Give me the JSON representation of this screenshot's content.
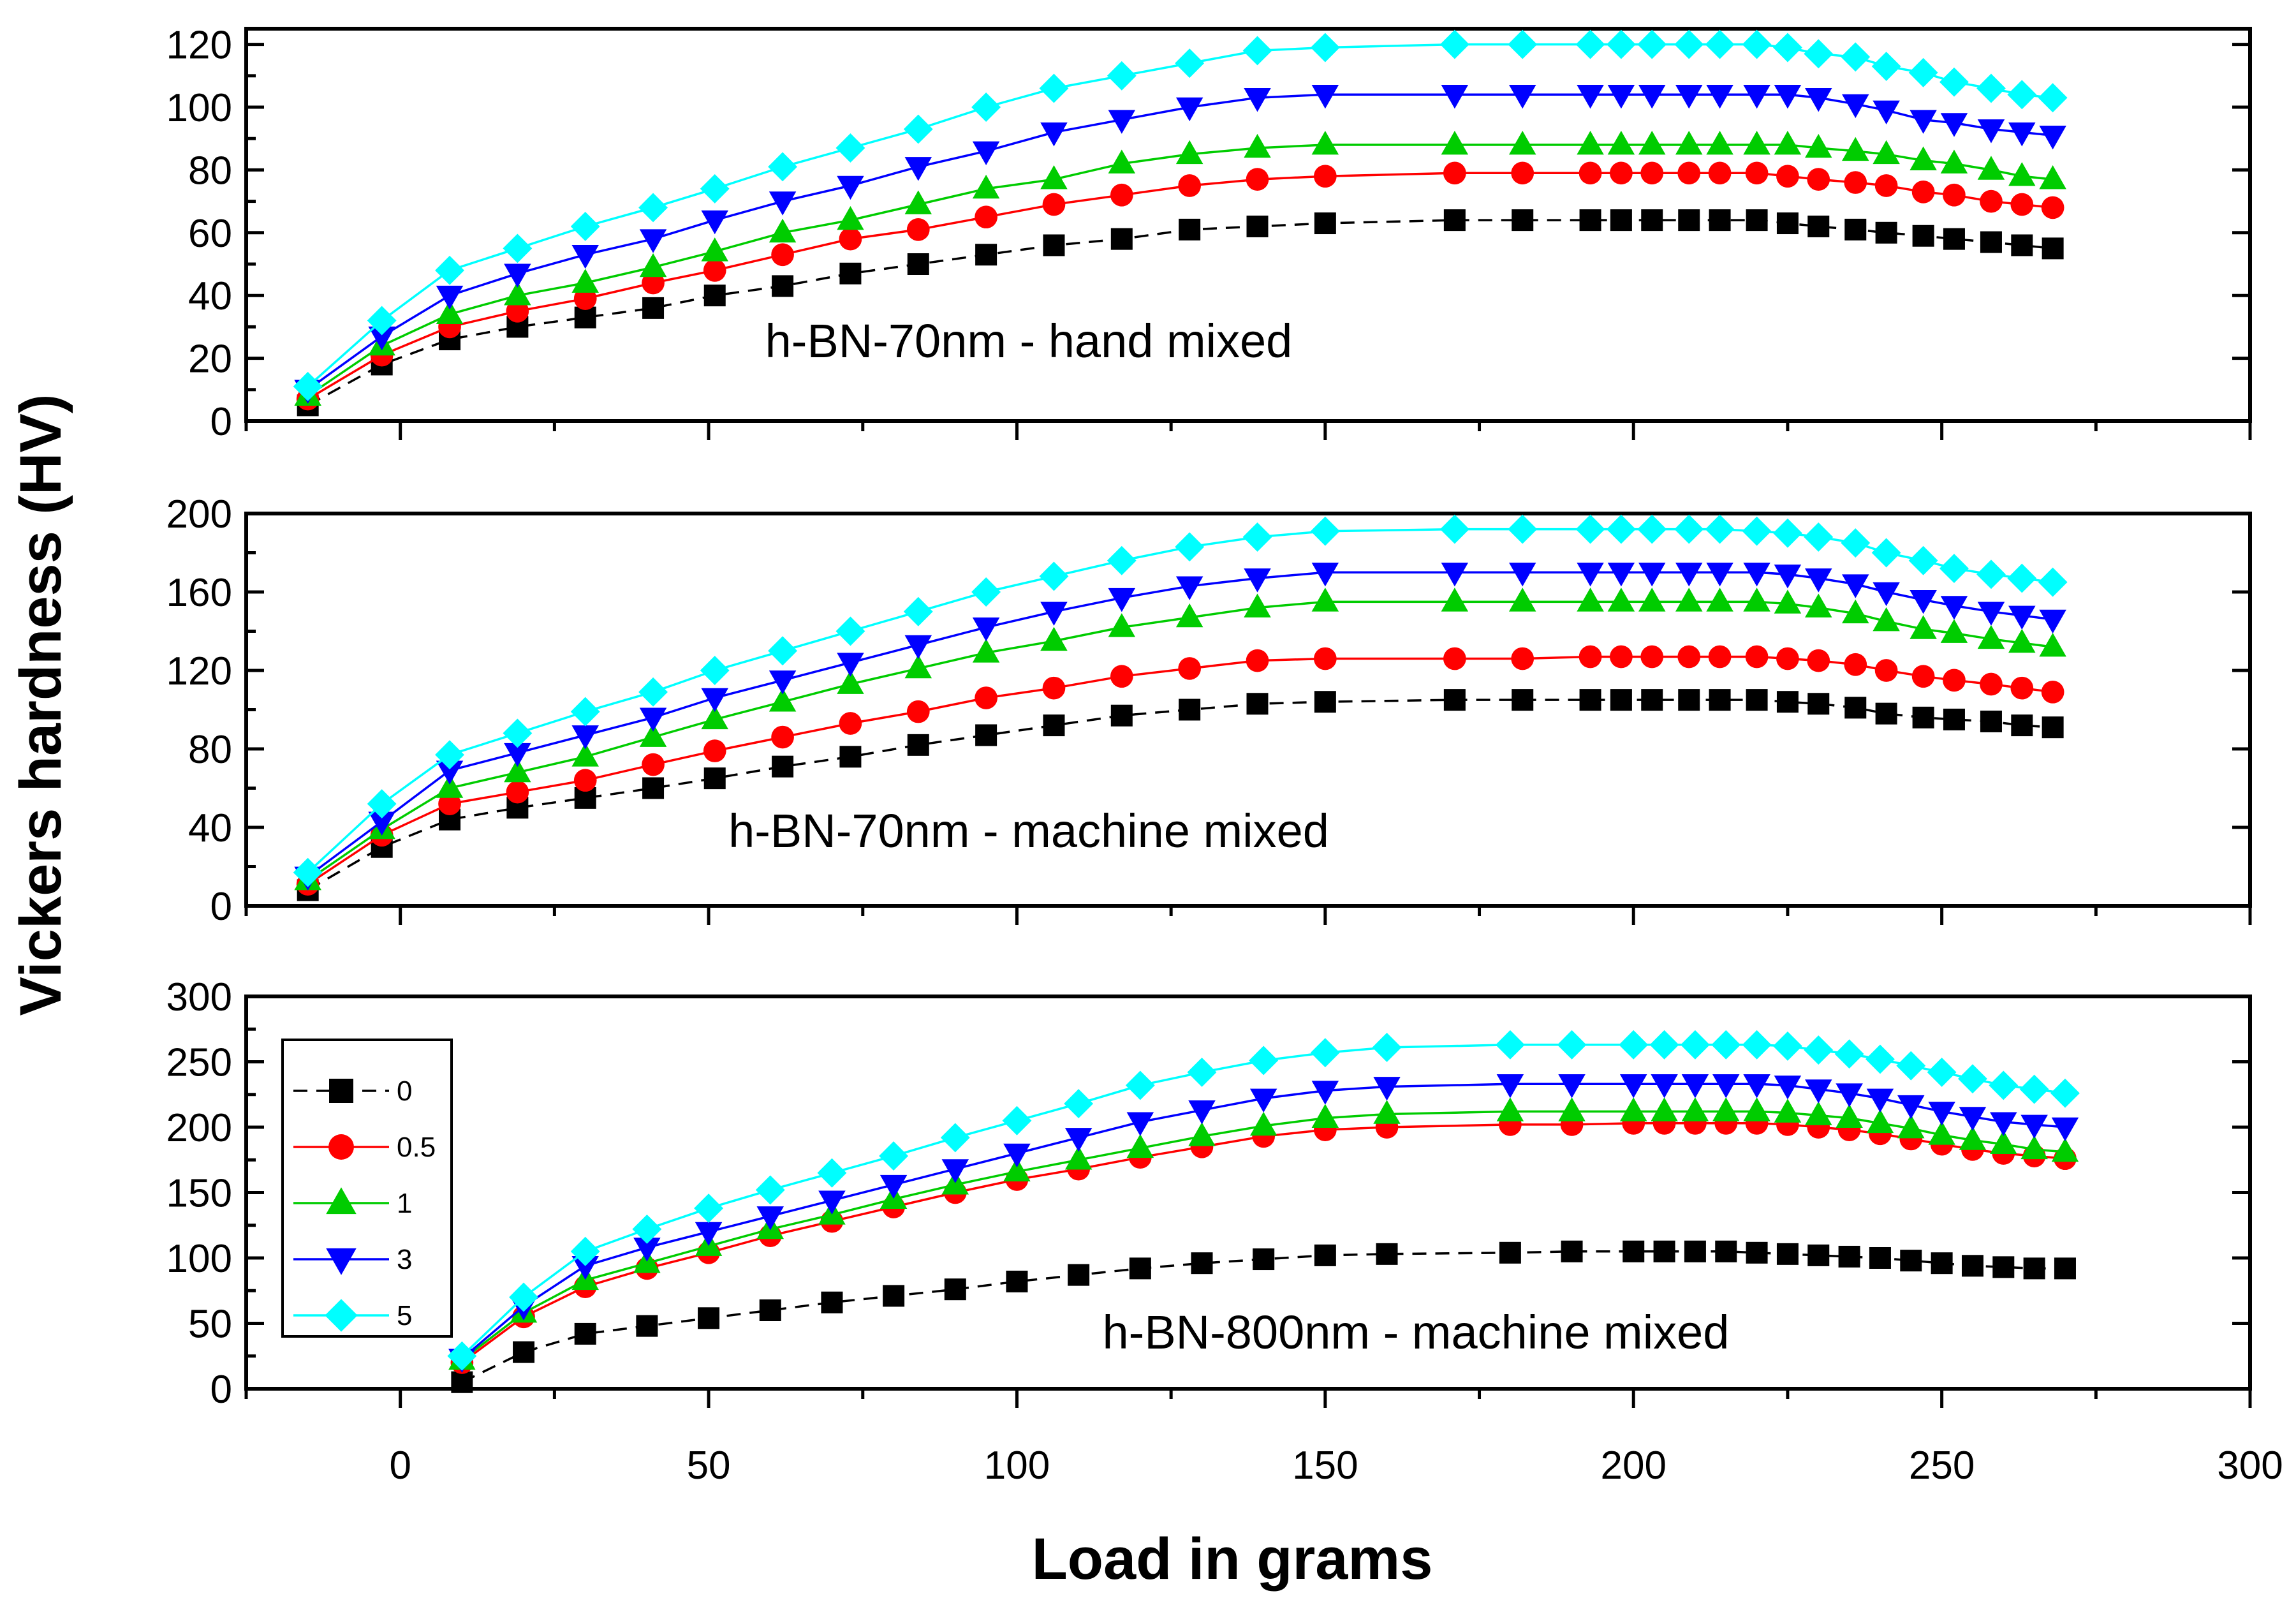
{
  "chart_data": {
    "type": "line",
    "ylabel": "Vickers hardness (HV)",
    "xlabel": "Load in grams",
    "xlim": [
      -25,
      300
    ],
    "x_ticks": [
      "0",
      "50",
      "100",
      "150",
      "200",
      "250",
      "300"
    ],
    "colors": {
      "0": "#000000",
      "0.5": "#ff0000",
      "1": "#00cc00",
      "3": "#0000ff",
      "5": "#00ffff"
    },
    "legend": {
      "position": "left",
      "entries": [
        {
          "label": "0",
          "marker": "square",
          "color": "#000000"
        },
        {
          "label": "0.5",
          "marker": "circle",
          "color": "#ff0000"
        },
        {
          "label": "1",
          "marker": "triangle-up",
          "color": "#00cc00"
        },
        {
          "label": "3",
          "marker": "triangle-down",
          "color": "#0000ff"
        },
        {
          "label": "5",
          "marker": "diamond",
          "color": "#00ffff"
        }
      ]
    },
    "panels": [
      {
        "label": "h-BN-70nm - hand mixed",
        "ylim": [
          0,
          125
        ],
        "y_ticks": [
          "0",
          "20",
          "40",
          "60",
          "80",
          "100",
          "120"
        ],
        "x": [
          -15,
          -3,
          8,
          19,
          30,
          41,
          51,
          62,
          73,
          84,
          95,
          106,
          117,
          128,
          139,
          150,
          171,
          182,
          193,
          198,
          203,
          209,
          214,
          220,
          225,
          230,
          236,
          241,
          247,
          252,
          258,
          263,
          268
        ],
        "series": [
          {
            "name": "0",
            "values": [
              5,
              18,
              26,
              30,
              33,
              36,
              40,
              43,
              47,
              50,
              53,
              56,
              58,
              61,
              62,
              63,
              64,
              64,
              64,
              64,
              64,
              64,
              64,
              64,
              63,
              62,
              61,
              60,
              59,
              58,
              57,
              56,
              55
            ]
          },
          {
            "name": "0.5",
            "values": [
              7,
              21,
              30,
              35,
              39,
              44,
              48,
              53,
              58,
              61,
              65,
              69,
              72,
              75,
              77,
              78,
              79,
              79,
              79,
              79,
              79,
              79,
              79,
              79,
              78,
              77,
              76,
              75,
              73,
              72,
              70,
              69,
              68
            ]
          },
          {
            "name": "1",
            "values": [
              8,
              24,
              34,
              40,
              44,
              49,
              54,
              60,
              64,
              69,
              74,
              77,
              82,
              85,
              87,
              88,
              88,
              88,
              88,
              88,
              88,
              88,
              88,
              88,
              88,
              87,
              86,
              85,
              83,
              82,
              80,
              78,
              77
            ]
          },
          {
            "name": "3",
            "values": [
              10,
              27,
              40,
              47,
              53,
              58,
              64,
              70,
              75,
              81,
              86,
              92,
              96,
              100,
              103,
              104,
              104,
              104,
              104,
              104,
              104,
              104,
              104,
              104,
              104,
              103,
              101,
              99,
              96,
              95,
              93,
              92,
              91
            ]
          },
          {
            "name": "5",
            "values": [
              11,
              32,
              48,
              55,
              62,
              68,
              74,
              81,
              87,
              93,
              100,
              106,
              110,
              114,
              118,
              119,
              120,
              120,
              120,
              120,
              120,
              120,
              120,
              120,
              119,
              117,
              116,
              113,
              111,
              108,
              106,
              104,
              103
            ]
          }
        ]
      },
      {
        "label": "h-BN-70nm - machine mixed",
        "ylim": [
          0,
          200
        ],
        "y_ticks": [
          "0",
          "40",
          "80",
          "120",
          "160",
          "200"
        ],
        "x": [
          -15,
          -3,
          8,
          19,
          30,
          41,
          51,
          62,
          73,
          84,
          95,
          106,
          117,
          128,
          139,
          150,
          171,
          182,
          193,
          198,
          203,
          209,
          214,
          220,
          225,
          230,
          236,
          241,
          247,
          252,
          258,
          263,
          268
        ],
        "series": [
          {
            "name": "0",
            "values": [
              8,
              30,
              44,
              50,
              55,
              60,
              65,
              71,
              76,
              82,
              87,
              92,
              97,
              100,
              103,
              104,
              105,
              105,
              105,
              105,
              105,
              105,
              105,
              105,
              104,
              103,
              101,
              98,
              96,
              95,
              94,
              92,
              91
            ]
          },
          {
            "name": "0.5",
            "values": [
              11,
              36,
              52,
              58,
              64,
              72,
              79,
              86,
              93,
              99,
              106,
              111,
              117,
              121,
              125,
              126,
              126,
              126,
              127,
              127,
              127,
              127,
              127,
              127,
              126,
              125,
              123,
              120,
              117,
              115,
              113,
              111,
              109
            ]
          },
          {
            "name": "1",
            "values": [
              13,
              39,
              60,
              68,
              76,
              86,
              95,
              104,
              113,
              121,
              129,
              135,
              142,
              147,
              152,
              155,
              155,
              155,
              155,
              155,
              155,
              155,
              155,
              155,
              154,
              152,
              149,
              145,
              141,
              139,
              136,
              134,
              132
            ]
          },
          {
            "name": "3",
            "values": [
              15,
              43,
              69,
              78,
              87,
              96,
              106,
              115,
              124,
              133,
              142,
              150,
              157,
              163,
              167,
              170,
              170,
              170,
              170,
              170,
              170,
              170,
              170,
              170,
              169,
              167,
              164,
              160,
              156,
              153,
              150,
              148,
              146
            ]
          },
          {
            "name": "5",
            "values": [
              17,
              52,
              77,
              88,
              99,
              109,
              120,
              130,
              140,
              150,
              160,
              168,
              176,
              183,
              188,
              191,
              192,
              192,
              192,
              192,
              192,
              192,
              192,
              191,
              190,
              188,
              185,
              180,
              176,
              172,
              169,
              167,
              165
            ]
          }
        ]
      },
      {
        "label": "h-BN-800nm - machine mixed",
        "ylim": [
          0,
          300
        ],
        "y_ticks": [
          "0",
          "50",
          "100",
          "150",
          "200",
          "250",
          "300"
        ],
        "x": [
          10,
          20,
          30,
          40,
          50,
          60,
          70,
          80,
          90,
          100,
          110,
          120,
          130,
          140,
          150,
          160,
          180,
          190,
          200,
          205,
          210,
          215,
          220,
          225,
          230,
          235,
          240,
          245,
          250,
          255,
          260,
          265,
          270
        ],
        "series": [
          {
            "name": "0",
            "values": [
              5,
              28,
              42,
              48,
              54,
              60,
              66,
              71,
              76,
              82,
              87,
              92,
              96,
              99,
              102,
              103,
              104,
              105,
              105,
              105,
              105,
              105,
              104,
              103,
              102,
              101,
              100,
              98,
              96,
              94,
              93,
              92,
              92
            ]
          },
          {
            "name": "0.5",
            "values": [
              20,
              55,
              78,
              92,
              104,
              117,
              128,
              139,
              150,
              160,
              168,
              177,
              185,
              193,
              198,
              200,
              202,
              202,
              203,
              203,
              203,
              203,
              203,
              202,
              200,
              198,
              195,
              191,
              187,
              183,
              180,
              178,
              176
            ]
          },
          {
            "name": "1",
            "values": [
              22,
              58,
              83,
              96,
              109,
              122,
              133,
              145,
              156,
              166,
              175,
              184,
              193,
              201,
              207,
              210,
              212,
              212,
              212,
              212,
              212,
              212,
              212,
              211,
              209,
              207,
              203,
              199,
              194,
              190,
              187,
              183,
              181
            ]
          },
          {
            "name": "3",
            "values": [
              23,
              63,
              94,
              108,
              120,
              132,
              144,
              156,
              168,
              180,
              192,
              204,
              213,
              222,
              228,
              231,
              233,
              233,
              233,
              233,
              233,
              233,
              233,
              232,
              229,
              226,
              222,
              217,
              212,
              208,
              204,
              202,
              200
            ]
          },
          {
            "name": "5",
            "values": [
              25,
              70,
              105,
              122,
              138,
              152,
              165,
              178,
              192,
              205,
              218,
              232,
              242,
              251,
              257,
              261,
              263,
              263,
              263,
              263,
              263,
              263,
              263,
              262,
              259,
              256,
              252,
              247,
              242,
              237,
              232,
              229,
              226
            ]
          }
        ]
      }
    ]
  }
}
